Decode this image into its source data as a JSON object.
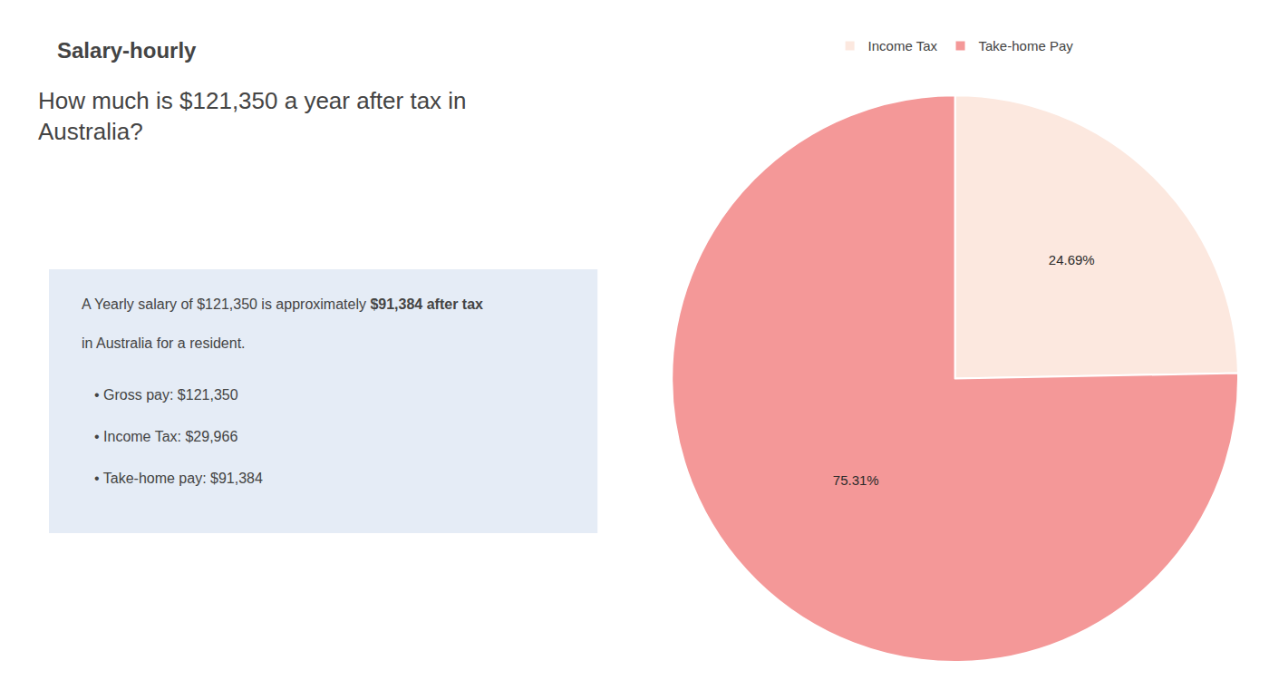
{
  "chart_data": {
    "type": "pie",
    "title": "How much is $121,350 a year after tax in\nAustralia?",
    "annotations": [
      "S",
      "alary-hourly",
      "A Yearly salary of $121,350 is approximately ",
      "$91,384 after tax",
      "in Australia for a resident.",
      "• Gross pay: $121,350",
      "• Income Tax: $29,966",
      "• Take-home pay: $91,384"
    ],
    "categories": [
      "Income Tax",
      "Take-home Pay"
    ],
    "values": [
      24.69,
      75.31
    ],
    "value_labels": [
      "24.69%",
      "75.31%"
    ],
    "colors": [
      "#fce8df",
      "#f49898"
    ],
    "data_labels": true,
    "legend": "top"
  }
}
